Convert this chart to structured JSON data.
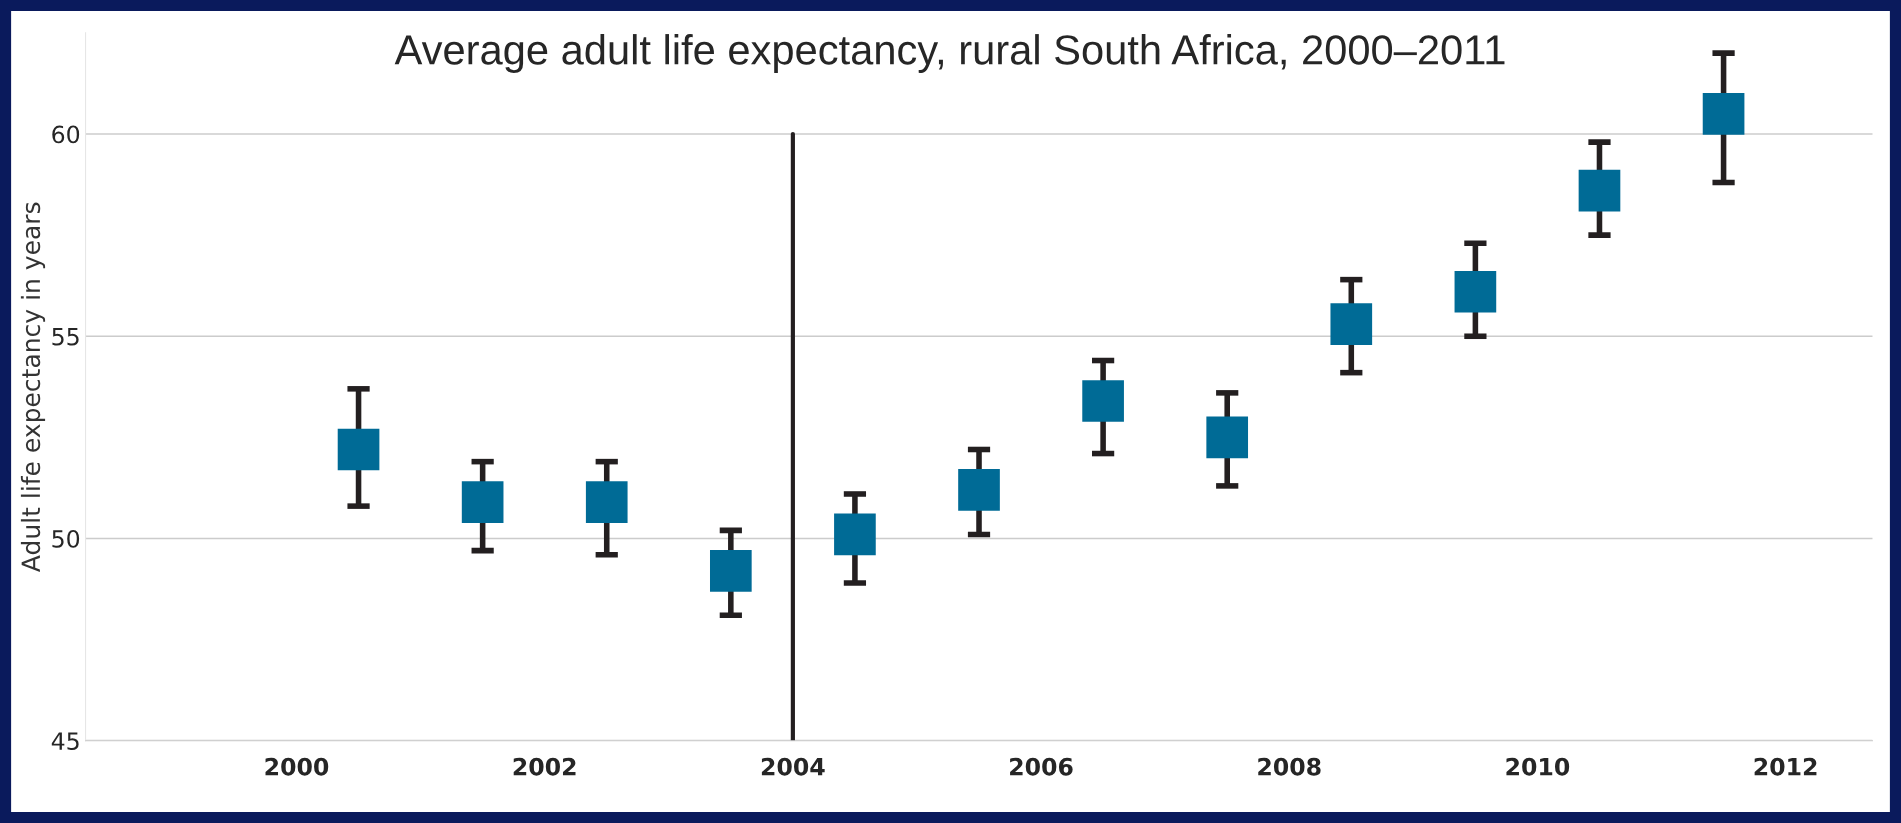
{
  "chart_data": {
    "type": "scatter",
    "title": "Average adult life expectancy, rural South Africa, 2000–2011",
    "ylabel": "Adult life expectancy in years",
    "x": [
      2000.5,
      2001.5,
      2002.5,
      2003.5,
      2004.5,
      2005.5,
      2006.5,
      2007.5,
      2008.5,
      2009.5,
      2010.5,
      2011.5
    ],
    "values": [
      52.2,
      50.9,
      50.9,
      49.2,
      50.1,
      51.2,
      53.4,
      52.5,
      55.3,
      56.1,
      58.6,
      60.5
    ],
    "errors": [
      [
        50.8,
        53.7
      ],
      [
        49.7,
        51.9
      ],
      [
        49.6,
        51.9
      ],
      [
        48.1,
        50.2
      ],
      [
        48.9,
        51.1
      ],
      [
        50.1,
        52.2
      ],
      [
        52.1,
        54.4
      ],
      [
        51.3,
        53.6
      ],
      [
        54.1,
        56.4
      ],
      [
        55.0,
        57.3
      ],
      [
        57.5,
        59.8
      ],
      [
        58.8,
        62.0
      ]
    ],
    "color": "#006b96",
    "marker": "square",
    "xlim": [
      1998.3,
      2012.7
    ],
    "xticks": [
      2000,
      2002,
      2004,
      2006,
      2008,
      2010,
      2012
    ],
    "ylim": [
      45,
      62.5
    ],
    "yticks": [
      45,
      50,
      55,
      60
    ],
    "grid": "y",
    "ref_lines": [
      {
        "axis": "x",
        "value": 2004,
        "label": null,
        "color": "#231f20"
      }
    ]
  }
}
